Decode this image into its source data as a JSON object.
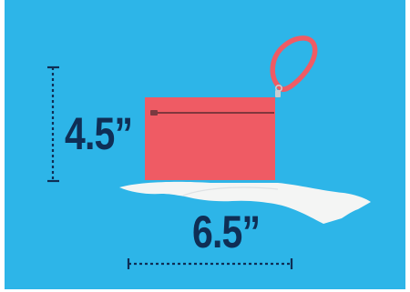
{
  "dimensions": {
    "height_label": "4.5”",
    "width_label": "6.5”"
  },
  "colors": {
    "background": "#2db5e8",
    "bag": "#ef5b64",
    "strap": "#ef5b64",
    "hand": "#f4f5f4",
    "text": "#0f2e55",
    "dim_lines": "#0f2e55"
  },
  "icons": {
    "bag": "wristlet-pouch",
    "hand": "open-palm-hand"
  }
}
